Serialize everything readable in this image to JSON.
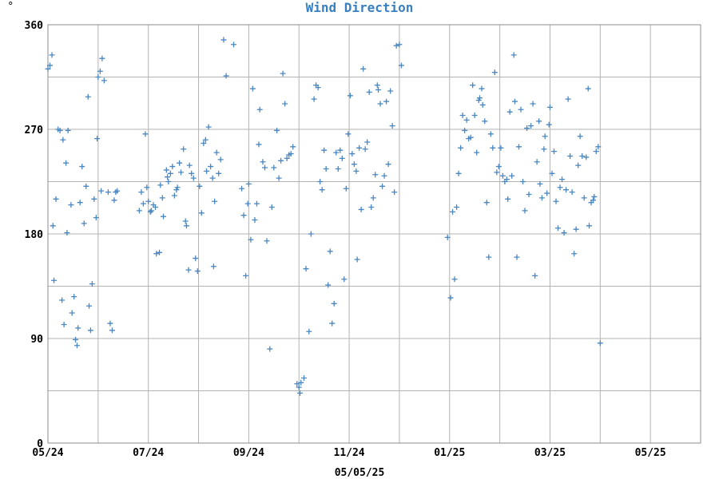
{
  "corner_mark": "°",
  "chart_data": {
    "type": "scatter",
    "title": "Wind Direction",
    "xlabel": "05/05/25",
    "ylabel": "",
    "ylim": [
      0,
      360
    ],
    "yticks": [
      0,
      90,
      180,
      270,
      360
    ],
    "xlim": [
      0,
      13
    ],
    "xticks": [
      {
        "x": 0,
        "label": "05/24"
      },
      {
        "x": 2,
        "label": "07/24"
      },
      {
        "x": 4,
        "label": "09/24"
      },
      {
        "x": 6,
        "label": "11/24"
      },
      {
        "x": 8,
        "label": "01/25"
      },
      {
        "x": 10,
        "label": "03/25"
      },
      {
        "x": 12,
        "label": "05/25"
      }
    ],
    "x_units": "months since 2024-05-01",
    "grid": true,
    "marker": "+",
    "color": "#4a86c0",
    "series": [
      {
        "name": "",
        "points": [
          [
            0.0,
            322
          ],
          [
            0.04,
            325
          ],
          [
            0.08,
            334
          ],
          [
            0.1,
            187
          ],
          [
            0.12,
            140
          ],
          [
            0.16,
            210
          ],
          [
            0.2,
            270
          ],
          [
            0.24,
            269
          ],
          [
            0.28,
            123
          ],
          [
            0.3,
            261
          ],
          [
            0.32,
            102
          ],
          [
            0.36,
            241
          ],
          [
            0.38,
            181
          ],
          [
            0.4,
            269
          ],
          [
            0.46,
            205
          ],
          [
            0.48,
            112
          ],
          [
            0.52,
            126
          ],
          [
            0.55,
            89
          ],
          [
            0.58,
            84
          ],
          [
            0.6,
            99
          ],
          [
            0.64,
            207
          ],
          [
            0.68,
            238
          ],
          [
            0.72,
            189
          ],
          [
            0.76,
            221
          ],
          [
            0.8,
            298
          ],
          [
            0.82,
            118
          ],
          [
            0.85,
            97
          ],
          [
            0.88,
            137
          ],
          [
            0.92,
            210
          ],
          [
            0.96,
            194
          ],
          [
            0.98,
            262
          ],
          [
            1.0,
            315
          ],
          [
            1.04,
            320
          ],
          [
            1.08,
            331
          ],
          [
            1.12,
            312
          ],
          [
            1.06,
            217
          ],
          [
            1.2,
            216
          ],
          [
            1.24,
            103
          ],
          [
            1.28,
            97
          ],
          [
            1.32,
            209
          ],
          [
            1.35,
            216
          ],
          [
            1.38,
            217
          ],
          [
            1.82,
            200
          ],
          [
            1.86,
            216
          ],
          [
            1.9,
            206
          ],
          [
            1.94,
            266
          ],
          [
            1.97,
            220
          ],
          [
            2.0,
            208
          ],
          [
            2.04,
            199
          ],
          [
            2.06,
            200
          ],
          [
            2.1,
            205
          ],
          [
            2.14,
            203
          ],
          [
            2.16,
            163
          ],
          [
            2.22,
            164
          ],
          [
            2.24,
            222
          ],
          [
            2.28,
            211
          ],
          [
            2.3,
            195
          ],
          [
            2.36,
            235
          ],
          [
            2.38,
            229
          ],
          [
            2.4,
            225
          ],
          [
            2.44,
            232
          ],
          [
            2.48,
            238
          ],
          [
            2.52,
            213
          ],
          [
            2.56,
            218
          ],
          [
            2.58,
            220
          ],
          [
            2.62,
            241
          ],
          [
            2.65,
            233
          ],
          [
            2.7,
            253
          ],
          [
            2.74,
            191
          ],
          [
            2.76,
            187
          ],
          [
            2.8,
            149
          ],
          [
            2.82,
            239
          ],
          [
            2.86,
            232
          ],
          [
            2.9,
            228
          ],
          [
            2.94,
            159
          ],
          [
            2.98,
            148
          ],
          [
            3.02,
            221
          ],
          [
            3.06,
            198
          ],
          [
            3.1,
            258
          ],
          [
            3.14,
            261
          ],
          [
            3.16,
            234
          ],
          [
            3.2,
            272
          ],
          [
            3.24,
            238
          ],
          [
            3.28,
            228
          ],
          [
            3.3,
            152
          ],
          [
            3.32,
            208
          ],
          [
            3.36,
            250
          ],
          [
            3.4,
            232
          ],
          [
            3.44,
            244
          ],
          [
            3.5,
            347
          ],
          [
            3.55,
            316
          ],
          [
            3.7,
            343
          ],
          [
            3.86,
            219
          ],
          [
            3.9,
            196
          ],
          [
            3.94,
            144
          ],
          [
            3.98,
            206
          ],
          [
            4.0,
            223
          ],
          [
            4.04,
            175
          ],
          [
            4.08,
            305
          ],
          [
            4.12,
            192
          ],
          [
            4.16,
            206
          ],
          [
            4.2,
            257
          ],
          [
            4.22,
            287
          ],
          [
            4.28,
            242
          ],
          [
            4.32,
            237
          ],
          [
            4.36,
            174
          ],
          [
            4.42,
            81
          ],
          [
            4.46,
            203
          ],
          [
            4.5,
            237
          ],
          [
            4.56,
            269
          ],
          [
            4.6,
            228
          ],
          [
            4.64,
            243
          ],
          [
            4.68,
            318
          ],
          [
            4.72,
            292
          ],
          [
            4.76,
            245
          ],
          [
            4.8,
            248
          ],
          [
            4.84,
            249
          ],
          [
            4.88,
            255
          ],
          [
            4.96,
            51
          ],
          [
            5.0,
            48
          ],
          [
            5.02,
            43
          ],
          [
            5.04,
            52
          ],
          [
            5.1,
            56
          ],
          [
            5.14,
            150
          ],
          [
            5.2,
            96
          ],
          [
            5.24,
            180
          ],
          [
            5.3,
            296
          ],
          [
            5.34,
            308
          ],
          [
            5.38,
            306
          ],
          [
            5.42,
            225
          ],
          [
            5.46,
            218
          ],
          [
            5.5,
            252
          ],
          [
            5.54,
            236
          ],
          [
            5.58,
            136
          ],
          [
            5.62,
            165
          ],
          [
            5.66,
            103
          ],
          [
            5.7,
            120
          ],
          [
            5.74,
            250
          ],
          [
            5.78,
            236
          ],
          [
            5.82,
            252
          ],
          [
            5.86,
            245
          ],
          [
            5.9,
            141
          ],
          [
            5.94,
            219
          ],
          [
            5.98,
            266
          ],
          [
            6.02,
            299
          ],
          [
            6.06,
            249
          ],
          [
            6.1,
            240
          ],
          [
            6.14,
            234
          ],
          [
            6.16,
            158
          ],
          [
            6.2,
            254
          ],
          [
            6.24,
            201
          ],
          [
            6.28,
            322
          ],
          [
            6.32,
            253
          ],
          [
            6.36,
            259
          ],
          [
            6.4,
            302
          ],
          [
            6.44,
            203
          ],
          [
            6.48,
            211
          ],
          [
            6.52,
            231
          ],
          [
            6.56,
            308
          ],
          [
            6.58,
            304
          ],
          [
            6.62,
            292
          ],
          [
            6.66,
            221
          ],
          [
            6.7,
            230
          ],
          [
            6.74,
            294
          ],
          [
            6.78,
            240
          ],
          [
            6.82,
            303
          ],
          [
            6.86,
            273
          ],
          [
            6.9,
            216
          ],
          [
            6.94,
            342
          ],
          [
            7.0,
            343
          ],
          [
            7.04,
            325
          ],
          [
            7.96,
            177
          ],
          [
            8.02,
            125
          ],
          [
            8.06,
            199
          ],
          [
            8.1,
            141
          ],
          [
            8.14,
            203
          ],
          [
            8.18,
            232
          ],
          [
            8.22,
            254
          ],
          [
            8.26,
            282
          ],
          [
            8.3,
            269
          ],
          [
            8.34,
            278
          ],
          [
            8.38,
            262
          ],
          [
            8.42,
            263
          ],
          [
            8.46,
            308
          ],
          [
            8.5,
            282
          ],
          [
            8.54,
            250
          ],
          [
            8.58,
            295
          ],
          [
            8.6,
            297
          ],
          [
            8.64,
            305
          ],
          [
            8.66,
            291
          ],
          [
            8.7,
            277
          ],
          [
            8.74,
            207
          ],
          [
            8.78,
            160
          ],
          [
            8.82,
            266
          ],
          [
            8.86,
            254
          ],
          [
            8.9,
            319
          ],
          [
            8.94,
            233
          ],
          [
            8.98,
            238
          ],
          [
            9.02,
            254
          ],
          [
            9.06,
            230
          ],
          [
            9.1,
            225
          ],
          [
            9.14,
            227
          ],
          [
            9.16,
            210
          ],
          [
            9.2,
            285
          ],
          [
            9.24,
            230
          ],
          [
            9.28,
            334
          ],
          [
            9.3,
            294
          ],
          [
            9.34,
            160
          ],
          [
            9.38,
            255
          ],
          [
            9.42,
            287
          ],
          [
            9.46,
            225
          ],
          [
            9.5,
            200
          ],
          [
            9.54,
            271
          ],
          [
            9.58,
            214
          ],
          [
            9.62,
            273
          ],
          [
            9.66,
            292
          ],
          [
            9.7,
            144
          ],
          [
            9.74,
            242
          ],
          [
            9.78,
            277
          ],
          [
            9.8,
            223
          ],
          [
            9.84,
            211
          ],
          [
            9.88,
            253
          ],
          [
            9.9,
            264
          ],
          [
            9.94,
            215
          ],
          [
            9.98,
            274
          ],
          [
            10.0,
            289
          ],
          [
            10.04,
            232
          ],
          [
            10.08,
            251
          ],
          [
            10.12,
            208
          ],
          [
            10.16,
            185
          ],
          [
            10.2,
            220
          ],
          [
            10.24,
            227
          ],
          [
            10.28,
            181
          ],
          [
            10.32,
            218
          ],
          [
            10.36,
            296
          ],
          [
            10.4,
            247
          ],
          [
            10.44,
            216
          ],
          [
            10.48,
            163
          ],
          [
            10.52,
            184
          ],
          [
            10.56,
            239
          ],
          [
            10.6,
            264
          ],
          [
            10.64,
            247
          ],
          [
            10.68,
            211
          ],
          [
            10.72,
            246
          ],
          [
            10.76,
            305
          ],
          [
            10.78,
            187
          ],
          [
            10.82,
            207
          ],
          [
            10.86,
            209
          ],
          [
            10.88,
            212
          ],
          [
            10.92,
            251
          ],
          [
            10.96,
            255
          ],
          [
            11.0,
            86
          ]
        ]
      }
    ]
  }
}
